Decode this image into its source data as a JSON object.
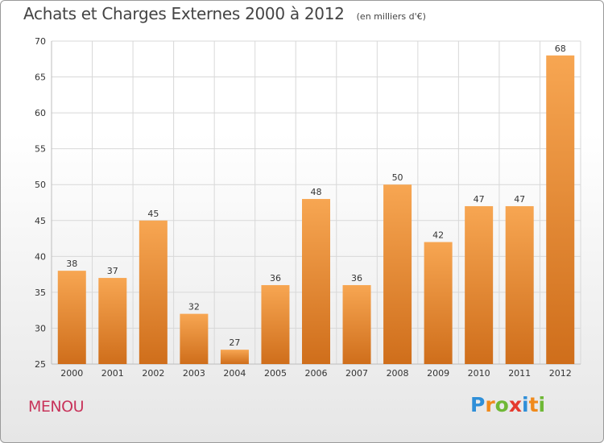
{
  "title": "Achats et Charges Externes 2000 à 2012",
  "subtitle": "(en milliers d'€)",
  "place": "MENOU",
  "brand": {
    "text": "Proxiti",
    "letters": [
      "P",
      "r",
      "o",
      "x",
      "i",
      "t",
      "i"
    ],
    "colors": [
      "#2f8fd8",
      "#f08a1c",
      "#6fb836",
      "#e53a2e",
      "#2f8fd8",
      "#f08a1c",
      "#6fb836"
    ]
  },
  "colors": {
    "bar_light": "#f7a652",
    "bar_dark": "#cf6e1b",
    "grid": "#d8d8d8",
    "axis_text": "#333333",
    "title": "#444444",
    "place": "#c8335a"
  },
  "chart_data": {
    "type": "bar",
    "title": "Achats et Charges Externes 2000 à 2012",
    "subtitle": "(en milliers d'€)",
    "categories": [
      "2000",
      "2001",
      "2002",
      "2003",
      "2004",
      "2005",
      "2006",
      "2007",
      "2008",
      "2009",
      "2010",
      "2011",
      "2012"
    ],
    "values": [
      38,
      37,
      45,
      32,
      27,
      36,
      48,
      36,
      50,
      42,
      47,
      47,
      68
    ],
    "ylim": [
      25,
      70
    ],
    "yticks": [
      25,
      30,
      35,
      40,
      45,
      50,
      55,
      60,
      65,
      70
    ],
    "grid": true,
    "data_labels": true
  }
}
